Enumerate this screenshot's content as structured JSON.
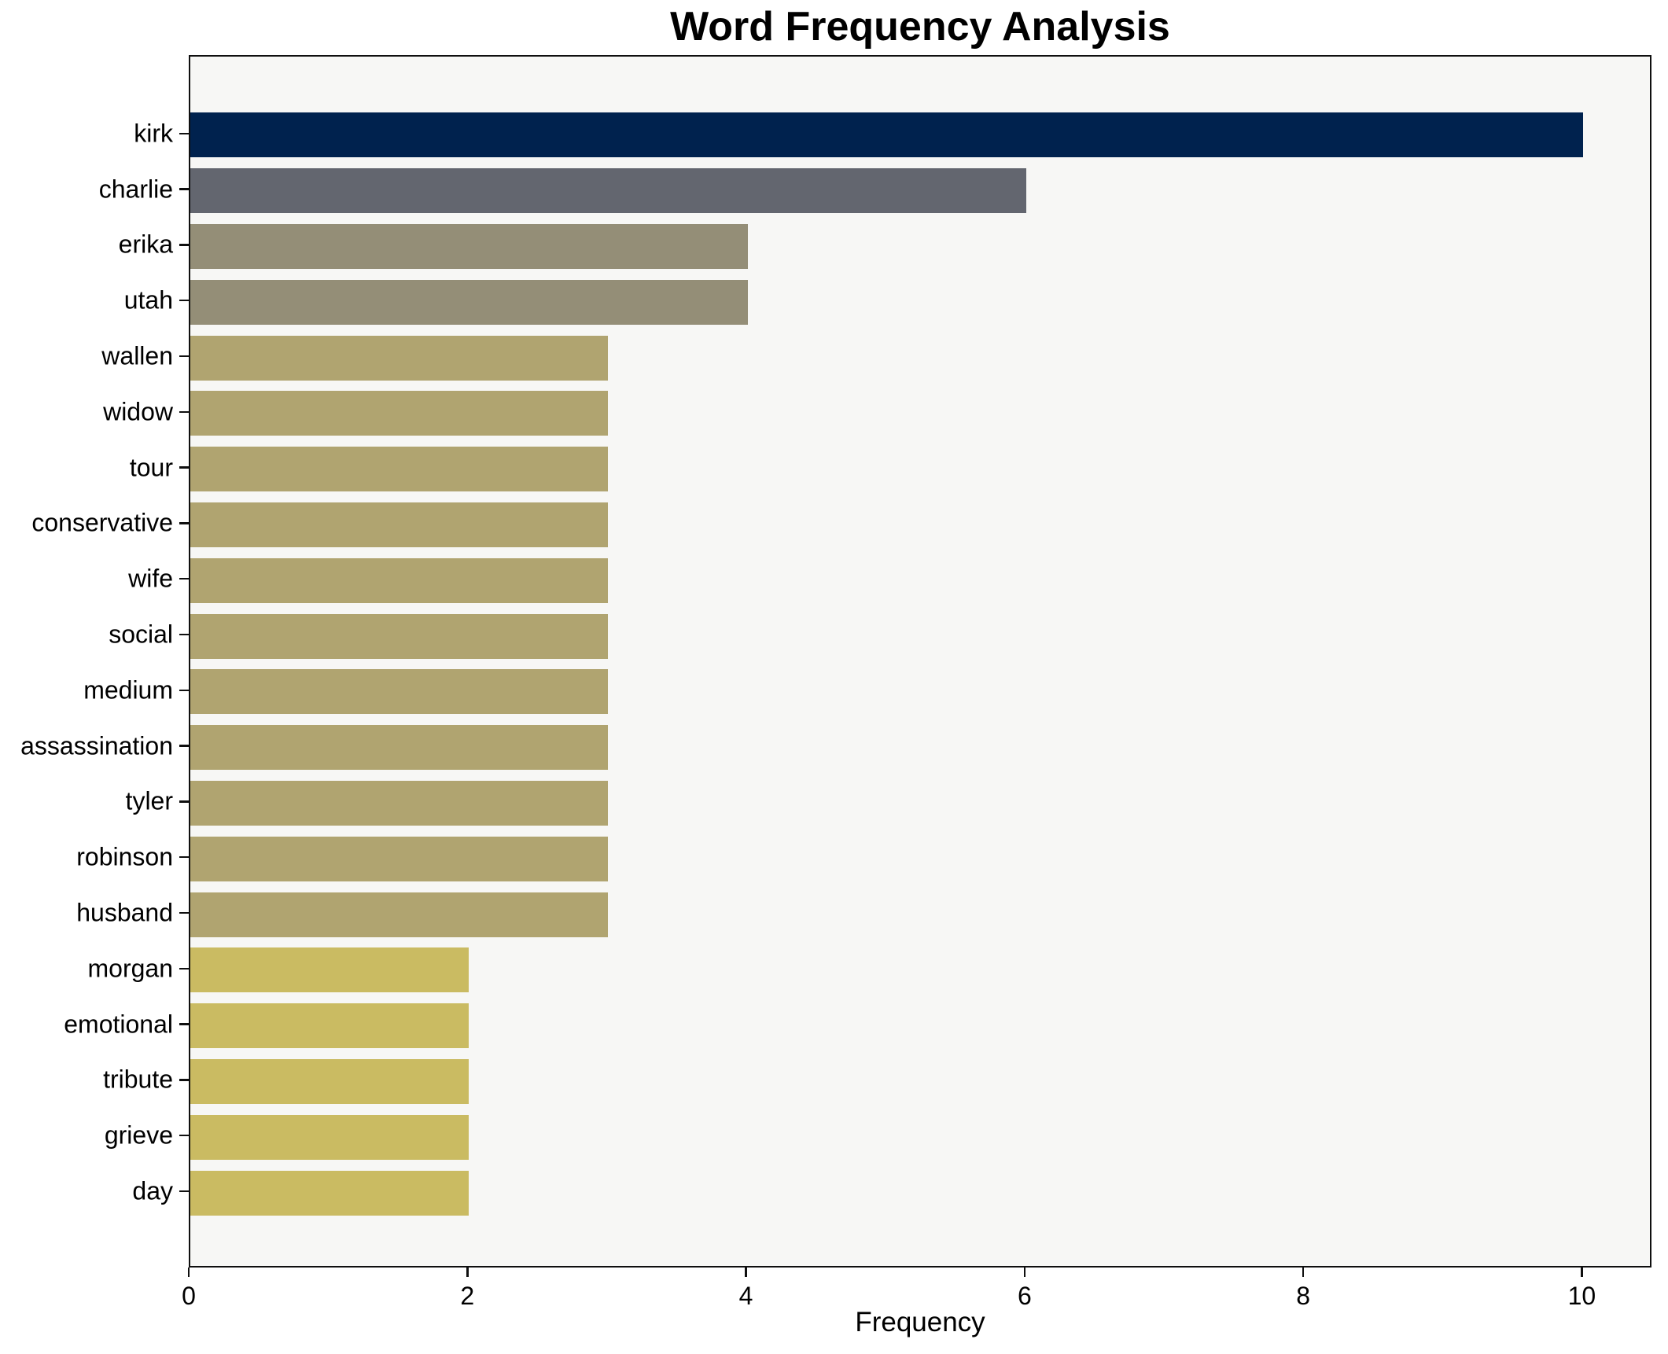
{
  "title": "Word Frequency Analysis",
  "chart_data": {
    "type": "bar",
    "orientation": "horizontal",
    "title": "Word Frequency Analysis",
    "xlabel": "Frequency",
    "ylabel": "",
    "categories": [
      "kirk",
      "charlie",
      "erika",
      "utah",
      "wallen",
      "widow",
      "tour",
      "conservative",
      "wife",
      "social",
      "medium",
      "assassination",
      "tyler",
      "robinson",
      "husband",
      "morgan",
      "emotional",
      "tribute",
      "grieve",
      "day"
    ],
    "values": [
      10,
      6,
      4,
      4,
      3,
      3,
      3,
      3,
      3,
      3,
      3,
      3,
      3,
      3,
      3,
      2,
      2,
      2,
      2,
      2
    ],
    "bar_colors": [
      "#00224e",
      "#63666f",
      "#948e77",
      "#948e77",
      "#b0a470",
      "#b0a470",
      "#b0a470",
      "#b0a470",
      "#b0a470",
      "#b0a470",
      "#b0a470",
      "#b0a470",
      "#b0a470",
      "#b0a470",
      "#b0a470",
      "#cabb62",
      "#cabb62",
      "#cabb62",
      "#cabb62",
      "#cabb62"
    ],
    "xlim": [
      0,
      10.5
    ],
    "x_ticks": [
      0,
      2,
      4,
      6,
      8,
      10
    ],
    "grid": false,
    "legend": null,
    "plot_background": "#f7f7f5",
    "figure_background": "#ffffff",
    "axis_color": "#0f0f0f"
  }
}
